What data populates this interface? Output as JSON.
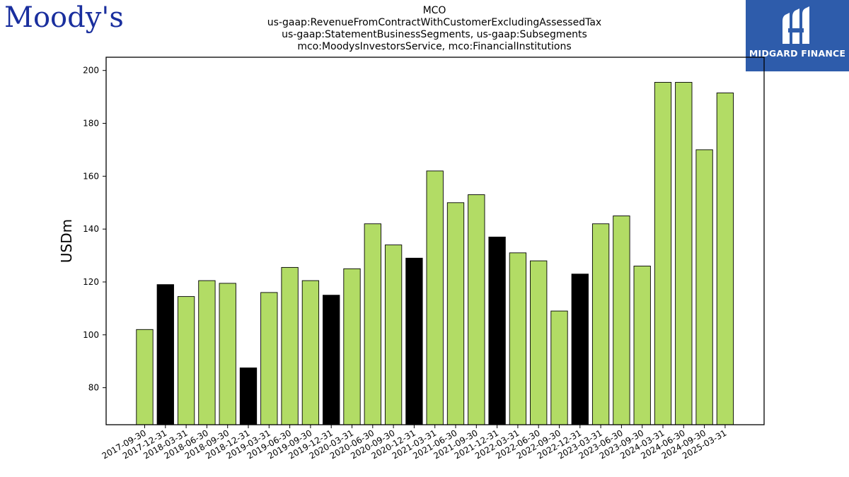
{
  "branding": {
    "left_logo_text": "Moody's",
    "right_logo_text": "MIDGARD FINANCE",
    "left_logo_color": "#1a2f9e",
    "right_logo_bg": "#2e5cab"
  },
  "header": {
    "lines": [
      "MCO",
      "us-gaap:RevenueFromContractWithCustomerExcludingAssessedTax",
      "us-gaap:StatementBusinessSegments, us-gaap:Subsegments",
      "mco:MoodysInvestorsService, mco:FinancialInstitutions"
    ]
  },
  "chart_data": {
    "type": "bar",
    "title": "MCO us-gaap:RevenueFromContractWithCustomerExcludingAssessedTax us-gaap:StatementBusinessSegments, us-gaap:Subsegments mco:MoodysInvestorsService, mco:FinancialInstitutions",
    "xlabel": "",
    "ylabel": "USDm",
    "ylim": [
      66,
      205
    ],
    "yticks": [
      80,
      100,
      120,
      140,
      160,
      180,
      200
    ],
    "grid": false,
    "colors": {
      "quarter": "#b2dc65",
      "year_end": "#000000",
      "edge": "#000000"
    },
    "categories": [
      "2017-09-30",
      "2017-12-31",
      "2018-03-31",
      "2018-06-30",
      "2018-09-30",
      "2018-12-31",
      "2019-03-31",
      "2019-06-30",
      "2019-09-30",
      "2019-12-31",
      "2020-03-31",
      "2020-06-30",
      "2020-09-30",
      "2020-12-31",
      "2021-03-31",
      "2021-06-30",
      "2021-09-30",
      "2021-12-31",
      "2022-03-31",
      "2022-06-30",
      "2022-09-30",
      "2022-12-31",
      "2023-03-31",
      "2023-06-30",
      "2023-09-30",
      "2024-03-31",
      "2024-06-30",
      "2024-09-30",
      "2025-03-31"
    ],
    "values": [
      102,
      119,
      114.5,
      120.5,
      119.5,
      87.5,
      116,
      125.5,
      120.5,
      115,
      125,
      142,
      134,
      129,
      162,
      150,
      153,
      137,
      131,
      128,
      109,
      123,
      142,
      145,
      126,
      195.5,
      195.5,
      170,
      191.5
    ],
    "year_end": [
      false,
      true,
      false,
      false,
      false,
      true,
      false,
      false,
      false,
      true,
      false,
      false,
      false,
      true,
      false,
      false,
      false,
      true,
      false,
      false,
      false,
      true,
      false,
      false,
      false,
      false,
      false,
      false,
      false
    ]
  }
}
